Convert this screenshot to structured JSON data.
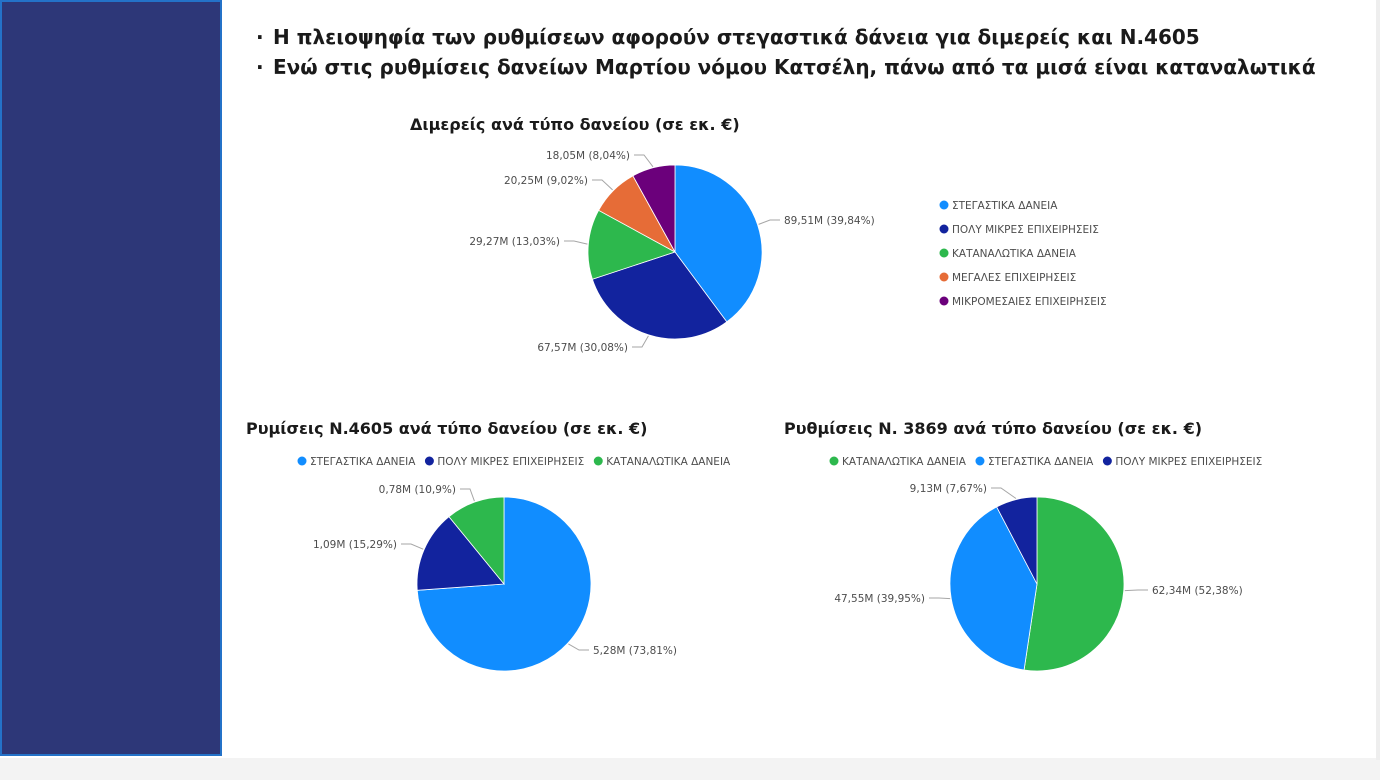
{
  "headline": {
    "bullet": "·",
    "line1": "Η πλειοψηφία των ρυθμίσεων αφορούν στεγαστικά δάνεια για διμερείς και Ν.4605",
    "line2": "Ενώ στις ρυθμίσεις δανείων Μαρτίου νόμου Κατσέλη, πάνω από τα μισά είναι καταναλωτικά"
  },
  "colors": {
    "sidebar": "#2d3778",
    "housing": "#118dff",
    "very_small_business": "#12239e",
    "consumer": "#2db84d",
    "large_business": "#e66c37",
    "smes": "#6b007b"
  },
  "chart_data": [
    {
      "type": "pie",
      "title": "Διμερείς ανά τύπο δανείου (σε εκ. €)",
      "legend_position": "right",
      "categories": [
        "ΣΤΕΓΑΣΤΙΚΑ ΔΑΝΕΙΑ",
        "ΠΟΛΥ ΜΙΚΡΕΣ ΕΠΙΧΕΙΡΗΣΕΙΣ",
        "ΚΑΤΑΝΑΛΩΤΙΚΑ ΔΑΝΕΙΑ",
        "ΜΕΓΑΛΕΣ ΕΠΙΧΕΙΡΗΣΕΙΣ",
        "ΜΙΚΡΟΜΕΣΑΙΕΣ ΕΠΙΧΕΙΡΗΣΕΙΣ"
      ],
      "values": [
        89.51,
        67.57,
        29.27,
        20.25,
        18.05
      ],
      "percentages": [
        39.84,
        30.08,
        13.03,
        9.02,
        8.04
      ],
      "labels": [
        "89,51M (39,84%)",
        "67,57M (30,08%)",
        "29,27M (13,03%)",
        "20,25M (9,02%)",
        "18,05M (8,04%)"
      ],
      "colors": [
        "#118dff",
        "#12239e",
        "#2db84d",
        "#e66c37",
        "#6b007b"
      ]
    },
    {
      "type": "pie",
      "title": "Ρυμίσεις Ν.4605 ανά τύπο δανείου (σε εκ. €)",
      "legend_position": "top",
      "categories": [
        "ΣΤΕΓΑΣΤΙΚΑ ΔΑΝΕΙΑ",
        "ΠΟΛΥ ΜΙΚΡΕΣ ΕΠΙΧΕΙΡΗΣΕΙΣ",
        "ΚΑΤΑΝΑΛΩΤΙΚΑ ΔΑΝΕΙΑ"
      ],
      "values": [
        5.28,
        1.09,
        0.78
      ],
      "percentages": [
        73.81,
        15.29,
        10.9
      ],
      "labels": [
        "5,28M (73,81%)",
        "1,09M (15,29%)",
        "0,78M (10,9%)"
      ],
      "colors": [
        "#118dff",
        "#12239e",
        "#2db84d"
      ]
    },
    {
      "type": "pie",
      "title": "Ρυθμίσεις Ν. 3869 ανά τύπο δανείου (σε εκ. €)",
      "legend_position": "top",
      "categories": [
        "ΚΑΤΑΝΑΛΩΤΙΚΑ ΔΑΝΕΙΑ",
        "ΣΤΕΓΑΣΤΙΚΑ ΔΑΝΕΙΑ",
        "ΠΟΛΥ ΜΙΚΡΕΣ ΕΠΙΧΕΙΡΗΣΕΙΣ"
      ],
      "values": [
        62.34,
        47.55,
        9.13
      ],
      "percentages": [
        52.38,
        39.95,
        7.67
      ],
      "labels": [
        "62,34M (52,38%)",
        "47,55M (39,95%)",
        "9,13M (7,67%)"
      ],
      "colors": [
        "#2db84d",
        "#118dff",
        "#12239e"
      ]
    }
  ]
}
